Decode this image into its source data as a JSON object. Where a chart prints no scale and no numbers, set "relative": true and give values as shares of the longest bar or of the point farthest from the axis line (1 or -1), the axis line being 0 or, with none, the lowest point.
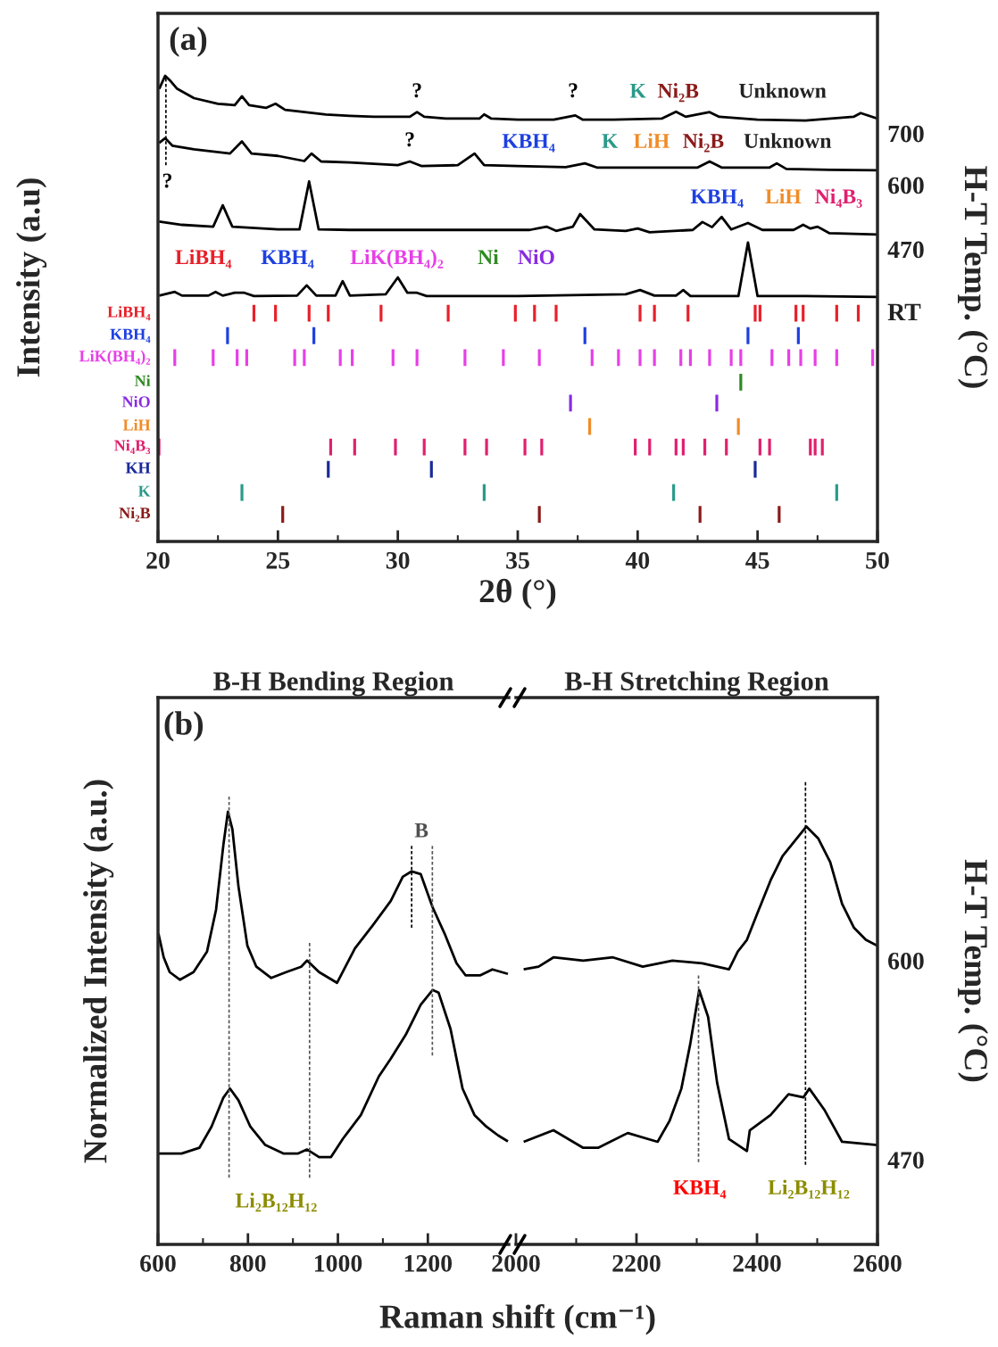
{
  "chart_data": [
    {
      "type": "line",
      "relative": true,
      "subtitle": "(a)",
      "xlabel": "2θ (°)",
      "ylabel": "Intensity (a.u)",
      "y2label": "H-T Temp. (°C)",
      "xlim": [
        20,
        50
      ],
      "xticks": [
        20,
        25,
        30,
        35,
        40,
        45,
        50
      ],
      "legend": "left",
      "series": [
        {
          "name": "700",
          "color": "#000000",
          "x": [
            20.05,
            20.3,
            20.5,
            20.8,
            21.5,
            22.5,
            23.2,
            23.5,
            23.8,
            24.5,
            24.9,
            25.3,
            27,
            28,
            29,
            30.5,
            30.8,
            31.1,
            32,
            33.4,
            33.6,
            33.9,
            35,
            36.5,
            37.4,
            37.7,
            39,
            41,
            41.6,
            42,
            43,
            43.4,
            45,
            47,
            49,
            49.3,
            50
          ],
          "values": [
            0.972,
            1,
            0.99,
            0.972,
            0.952,
            0.94,
            0.937,
            0.956,
            0.937,
            0.931,
            0.94,
            0.927,
            0.917,
            0.914,
            0.912,
            0.912,
            0.922,
            0.912,
            0.908,
            0.908,
            0.917,
            0.908,
            0.906,
            0.906,
            0.915,
            0.906,
            0.906,
            0.908,
            0.923,
            0.912,
            0.922,
            0.912,
            0.906,
            0.904,
            0.912,
            0.92,
            0.908
          ]
        },
        {
          "name": "600",
          "color": "#000000",
          "x": [
            20.05,
            20.3,
            20.6,
            21.5,
            23,
            23.5,
            23.9,
            25,
            26.1,
            26.4,
            26.8,
            28,
            30,
            30.5,
            31,
            32.5,
            33.2,
            33.6,
            35,
            37,
            37.8,
            38.3,
            40,
            42.5,
            43,
            43.5,
            45.5,
            45.8,
            46.2,
            48,
            50
          ],
          "values": [
            0.856,
            0.866,
            0.85,
            0.842,
            0.833,
            0.859,
            0.833,
            0.828,
            0.817,
            0.833,
            0.816,
            0.814,
            0.808,
            0.816,
            0.806,
            0.808,
            0.833,
            0.808,
            0.806,
            0.804,
            0.812,
            0.803,
            0.803,
            0.803,
            0.816,
            0.803,
            0.803,
            0.812,
            0.8,
            0.798,
            0.797
          ]
        },
        {
          "name": "470",
          "color": "#000000",
          "x": [
            20.05,
            21,
            22.3,
            22.7,
            23.1,
            25,
            25.9,
            26.3,
            26.7,
            28,
            30,
            32,
            35.5,
            36.2,
            36.6,
            37.3,
            37.6,
            38.2,
            39.5,
            40,
            40.5,
            42.3,
            42.7,
            43.1,
            43.5,
            43.9,
            44.6,
            45.2,
            46.5,
            46.9,
            47.2,
            47.5,
            48,
            50
          ],
          "values": [
            0.687,
            0.68,
            0.676,
            0.722,
            0.676,
            0.67,
            0.67,
            0.773,
            0.67,
            0.669,
            0.669,
            0.669,
            0.669,
            0.676,
            0.667,
            0.676,
            0.703,
            0.67,
            0.667,
            0.672,
            0.664,
            0.669,
            0.686,
            0.675,
            0.697,
            0.67,
            0.684,
            0.669,
            0.669,
            0.68,
            0.672,
            0.676,
            0.662,
            0.659
          ]
        },
        {
          "name": "RT",
          "color": "#000000",
          "x": [
            20.05,
            20.7,
            21,
            22.1,
            22.4,
            22.7,
            23.2,
            23.6,
            24,
            25.8,
            26.2,
            26.6,
            27.4,
            27.7,
            28,
            29.5,
            30,
            30.4,
            30.8,
            31.2,
            35,
            39.5,
            40.1,
            40.7,
            41.6,
            41.9,
            42.2,
            44.2,
            44.6,
            45,
            47,
            50
          ],
          "values": [
            0.528,
            0.536,
            0.528,
            0.528,
            0.536,
            0.528,
            0.534,
            0.534,
            0.527,
            0.528,
            0.55,
            0.528,
            0.528,
            0.559,
            0.528,
            0.531,
            0.567,
            0.534,
            0.534,
            0.527,
            0.527,
            0.531,
            0.54,
            0.528,
            0.528,
            0.54,
            0.527,
            0.527,
            0.642,
            0.527,
            0.527,
            0.525
          ]
        },
        {
          "type": "line",
          "color": "#000000",
          "line_style": "dashed",
          "x": [
            20.33,
            20.33
          ],
          "values": [
            0.808,
            0.994
          ]
        },
        {
          "type": "line",
          "name": "LiBH₄",
          "color": "#e8202a",
          "x": [
            24.0,
            24.0,
            null,
            24.9,
            24.9,
            null,
            26.3,
            26.3,
            null,
            27.1,
            27.1,
            null,
            29.3,
            29.3,
            null,
            32.1,
            32.1,
            null,
            34.9,
            34.9,
            null,
            35.7,
            35.7,
            null,
            36.6,
            36.6,
            null,
            40.1,
            40.1,
            null,
            40.7,
            40.7,
            null,
            42.1,
            42.1,
            null,
            44.9,
            44.9,
            null,
            45.1,
            45.1,
            null,
            46.6,
            46.6,
            null,
            46.9,
            46.9,
            null,
            48.3,
            48.3,
            null,
            49.2,
            49.2
          ],
          "values": [
            0.472,
            0.508,
            null,
            0.472,
            0.508,
            null,
            0.472,
            0.508,
            null,
            0.472,
            0.508,
            null,
            0.472,
            0.508,
            null,
            0.472,
            0.508,
            null,
            0.472,
            0.508,
            null,
            0.472,
            0.508,
            null,
            0.472,
            0.508,
            null,
            0.472,
            0.508,
            null,
            0.472,
            0.508,
            null,
            0.472,
            0.508,
            null,
            0.472,
            0.508,
            null,
            0.472,
            0.508,
            null,
            0.472,
            0.508,
            null,
            0.472,
            0.508,
            null,
            0.472,
            0.508,
            null,
            0.472,
            0.508
          ]
        },
        {
          "type": "line",
          "name": "KBH₄",
          "color": "#1e40e0",
          "x": [
            22.9,
            22.9,
            null,
            26.5,
            26.5,
            null,
            37.8,
            37.8,
            null,
            44.6,
            44.6,
            null,
            46.7,
            46.7
          ],
          "values": [
            0.424,
            0.46,
            null,
            0.424,
            0.46,
            null,
            0.424,
            0.46,
            null,
            0.424,
            0.46,
            null,
            0.424,
            0.46
          ]
        },
        {
          "type": "line",
          "name": "LiK(BH₄)₂",
          "color": "#e640e6",
          "x": [
            20.7,
            20.7,
            null,
            22.3,
            22.3,
            null,
            23.3,
            23.3,
            null,
            23.7,
            23.7,
            null,
            25.7,
            25.7,
            null,
            26.1,
            26.1,
            null,
            27.6,
            27.6,
            null,
            28.1,
            28.1,
            null,
            29.8,
            29.8,
            null,
            30.8,
            30.8,
            null,
            32.8,
            32.8,
            null,
            34.4,
            34.4,
            null,
            35.9,
            35.9,
            null,
            38.1,
            38.1,
            null,
            39.2,
            39.2,
            null,
            40.1,
            40.1,
            null,
            40.7,
            40.7,
            null,
            41.8,
            41.8,
            null,
            42.2,
            42.2,
            null,
            43.0,
            43.0,
            null,
            43.9,
            43.9,
            null,
            44.3,
            44.3,
            null,
            45.6,
            45.6,
            null,
            46.3,
            46.3,
            null,
            46.8,
            46.8,
            null,
            47.4,
            47.4,
            null,
            48.3,
            48.3,
            null,
            49.8,
            49.8
          ],
          "values": [
            0.377,
            0.413,
            null,
            0.377,
            0.413,
            null,
            0.377,
            0.413,
            null,
            0.377,
            0.413,
            null,
            0.377,
            0.413,
            null,
            0.377,
            0.413,
            null,
            0.377,
            0.413,
            null,
            0.377,
            0.413,
            null,
            0.377,
            0.413,
            null,
            0.377,
            0.413,
            null,
            0.377,
            0.413,
            null,
            0.377,
            0.413,
            null,
            0.377,
            0.413,
            null,
            0.377,
            0.413,
            null,
            0.377,
            0.413,
            null,
            0.377,
            0.413,
            null,
            0.377,
            0.413,
            null,
            0.377,
            0.413,
            null,
            0.377,
            0.413,
            null,
            0.377,
            0.413,
            null,
            0.377,
            0.413,
            null,
            0.377,
            0.413,
            null,
            0.377,
            0.413,
            null,
            0.377,
            0.413,
            null,
            0.377,
            0.413,
            null,
            0.377,
            0.413,
            null,
            0.377,
            0.413,
            null,
            0.377,
            0.413
          ]
        },
        {
          "type": "line",
          "name": "Ni",
          "color": "#2e8b22",
          "x": [
            44.3,
            44.3
          ],
          "values": [
            0.324,
            0.36
          ]
        },
        {
          "type": "line",
          "name": "NiO",
          "color": "#8a2be2",
          "x": [
            37.2,
            37.2,
            null,
            43.3,
            43.3
          ],
          "values": [
            0.279,
            0.315,
            null,
            0.279,
            0.315
          ]
        },
        {
          "type": "line",
          "name": "LiH",
          "color": "#f08c28",
          "x": [
            38.0,
            38.0,
            null,
            44.2,
            44.2
          ],
          "values": [
            0.229,
            0.265,
            null,
            0.229,
            0.265
          ]
        },
        {
          "type": "line",
          "name": "Ni₄B₃",
          "color": "#e0206e",
          "x": [
            20.04,
            20.04,
            null,
            27.2,
            27.2,
            null,
            28.2,
            28.2,
            null,
            29.9,
            29.9,
            null,
            31.1,
            31.1,
            null,
            32.8,
            32.8,
            null,
            33.7,
            33.7,
            null,
            35.3,
            35.3,
            null,
            36.0,
            36.0,
            null,
            39.9,
            39.9,
            null,
            40.5,
            40.5,
            null,
            41.6,
            41.6,
            null,
            41.9,
            41.9,
            null,
            42.8,
            42.8,
            null,
            43.7,
            43.7,
            null,
            45.1,
            45.1,
            null,
            45.5,
            45.5,
            null,
            47.2,
            47.2,
            null,
            47.4,
            47.4,
            null,
            47.7,
            47.7
          ],
          "values": [
            0.185,
            0.221,
            null,
            0.185,
            0.221,
            null,
            0.185,
            0.221,
            null,
            0.185,
            0.221,
            null,
            0.185,
            0.221,
            null,
            0.185,
            0.221,
            null,
            0.185,
            0.221,
            null,
            0.185,
            0.221,
            null,
            0.185,
            0.221,
            null,
            0.185,
            0.221,
            null,
            0.185,
            0.221,
            null,
            0.185,
            0.221,
            null,
            0.185,
            0.221,
            null,
            0.185,
            0.221,
            null,
            0.185,
            0.221,
            null,
            0.185,
            0.221,
            null,
            0.185,
            0.221,
            null,
            0.185,
            0.221,
            null,
            0.185,
            0.221,
            null,
            0.185,
            0.221
          ]
        },
        {
          "type": "line",
          "name": "KH",
          "color": "#1a2a9a",
          "x": [
            27.1,
            27.1,
            null,
            31.4,
            31.4,
            null,
            44.9,
            44.9
          ],
          "values": [
            0.137,
            0.173,
            null,
            0.137,
            0.173,
            null,
            0.137,
            0.173
          ]
        },
        {
          "type": "line",
          "name": "K",
          "color": "#2a9a8a",
          "x": [
            23.5,
            23.5,
            null,
            33.6,
            33.6,
            null,
            41.5,
            41.5,
            null,
            48.3,
            48.3
          ],
          "values": [
            0.087,
            0.123,
            null,
            0.087,
            0.123,
            null,
            0.087,
            0.123,
            null,
            0.087,
            0.123
          ]
        },
        {
          "type": "line",
          "name": "Ni₂B",
          "color": "#8b1a1a",
          "x": [
            25.2,
            25.2,
            null,
            35.9,
            35.9,
            null,
            42.6,
            42.6,
            null,
            45.9,
            45.9
          ],
          "values": [
            0.04,
            0.076,
            null,
            0.04,
            0.076,
            null,
            0.04,
            0.076,
            null,
            0.04,
            0.076
          ]
        }
      ],
      "annotations": [
        "?",
        "?",
        "?",
        "?",
        "K",
        "Ni₂B",
        "Unknown",
        "KBH₄",
        "K",
        "LiH",
        "Ni₂B",
        "Unknown",
        "KBH₄",
        "LiH",
        "Ni₄B₃",
        "LiBH₄",
        "KBH₄",
        "LiK(BH₄)₂",
        "Ni",
        "NiO"
      ]
    },
    {
      "type": "line",
      "relative": true,
      "title": "B-H Bending Region",
      "subtitle": "(b)",
      "ylabel": "Normalized Intensity (a.u.)",
      "xlabel": "Raman shift (cm⁻¹)",
      "xlim": [
        600,
        1380
      ],
      "xticks": [
        600,
        800,
        1000,
        1200
      ],
      "series": [
        {
          "color": "#000000",
          "x": [
            601,
            612.7,
            626,
            649,
            679,
            709,
            729,
            745.5,
            755.5,
            765.4,
            778.8,
            798.7,
            818.7,
            851.8,
            885,
            918.3,
            931.5,
            958.2,
            998,
            1037.9,
            1077.8,
            1117.6,
            1144.2,
            1164,
            1184,
            1210.5,
            1237.2,
            1263.7,
            1283.7,
            1317,
            1343.5,
            1378
          ],
          "values": [
            0.694,
            0.641,
            0.608,
            0.591,
            0.608,
            0.654,
            0.747,
            0.893,
            0.966,
            0.927,
            0.8,
            0.667,
            0.62,
            0.595,
            0.608,
            0.62,
            0.634,
            0.608,
            0.584,
            0.661,
            0.713,
            0.767,
            0.821,
            0.833,
            0.827,
            0.753,
            0.694,
            0.628,
            0.601,
            0.601,
            0.614,
            0.604
          ]
        },
        {
          "color": "#000000",
          "x": [
            601,
            652.5,
            692.3,
            719,
            745.5,
            760,
            778.8,
            805.3,
            838.6,
            878.5,
            911.6,
            931.5,
            958.2,
            984.7,
            1011.2,
            1051.1,
            1090.9,
            1117.6,
            1150.7,
            1184,
            1210.5,
            1223.9,
            1250.4,
            1277.1,
            1303.6,
            1330.1,
            1356.8,
            1378
          ],
          "values": [
            0.203,
            0.203,
            0.216,
            0.263,
            0.328,
            0.348,
            0.322,
            0.263,
            0.222,
            0.203,
            0.203,
            0.212,
            0.195,
            0.195,
            0.236,
            0.289,
            0.375,
            0.415,
            0.468,
            0.535,
            0.568,
            0.562,
            0.481,
            0.348,
            0.289,
            0.263,
            0.243,
            0.23
          ]
        },
        {
          "type": "line",
          "color": "#555555",
          "line_style": "dashed",
          "x": [
            758,
            758
          ],
          "values": [
            0.149,
            1
          ]
        },
        {
          "type": "line",
          "color": "#555555",
          "line_style": "dashed",
          "x": [
            937,
            937
          ],
          "values": [
            0.149,
            0.673
          ]
        },
        {
          "type": "line",
          "color": "#000000",
          "line_style": "dashed",
          "x": [
            1164,
            1164
          ],
          "values": [
            0.707,
            0.89
          ]
        },
        {
          "type": "line",
          "color": "#555555",
          "line_style": "dashed",
          "x": [
            1210,
            1210
          ],
          "values": [
            0.422,
            0.89
          ]
        }
      ],
      "annotations": [
        "B",
        "Li₂B₁₂H₁₂"
      ]
    },
    {
      "type": "line",
      "relative": true,
      "title": "B-H Stretching Region",
      "y2label": "H-T Temp. (°C)",
      "xlim": [
        2000,
        2600
      ],
      "xticks": [
        2000,
        2200,
        2400,
        2600
      ],
      "series": [
        {
          "name": "600",
          "color": "#000000",
          "x": [
            2012.8,
            2037.5,
            2062.2,
            2111.6,
            2161,
            2210.4,
            2259.7,
            2309.2,
            2353.6,
            2368.4,
            2383.3,
            2403,
            2422.7,
            2442.5,
            2462.2,
            2481.9,
            2501.8,
            2521.5,
            2541.2,
            2561,
            2580.7,
            2600
          ],
          "values": [
            0.595,
            0.601,
            0.621,
            0.614,
            0.621,
            0.601,
            0.614,
            0.608,
            0.595,
            0.634,
            0.659,
            0.724,
            0.788,
            0.84,
            0.872,
            0.904,
            0.878,
            0.827,
            0.737,
            0.685,
            0.659,
            0.646
          ]
        },
        {
          "name": "470",
          "color": "#000000",
          "x": [
            2012.8,
            2062.2,
            2111.6,
            2136.3,
            2185.6,
            2235.1,
            2254.8,
            2274.5,
            2289.3,
            2304.1,
            2318.9,
            2333.8,
            2353.6,
            2383.3,
            2388.1,
            2422.7,
            2452.3,
            2477,
            2486.9,
            2511.5,
            2541.2,
            2600
          ],
          "values": [
            0.222,
            0.247,
            0.209,
            0.209,
            0.241,
            0.222,
            0.267,
            0.337,
            0.434,
            0.55,
            0.492,
            0.35,
            0.228,
            0.202,
            0.247,
            0.28,
            0.325,
            0.318,
            0.337,
            0.292,
            0.222,
            0.215
          ]
        },
        {
          "type": "line",
          "color": "#555555",
          "line_style": "dashed",
          "x": [
            2303,
            2303
          ],
          "values": [
            0.178,
            0.582
          ]
        },
        {
          "type": "line",
          "color": "#000000",
          "line_style": "dashed",
          "x": [
            2480.5,
            2480.5
          ],
          "values": [
            0.172,
            1
          ]
        }
      ],
      "annotations": [
        "KBH₄",
        "Li₂B₁₂H₁₂"
      ]
    }
  ]
}
